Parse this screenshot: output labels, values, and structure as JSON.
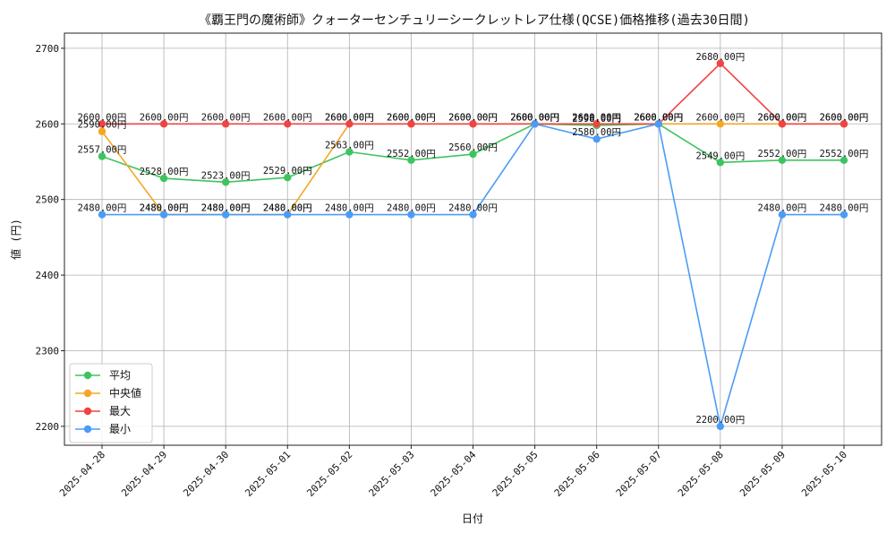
{
  "chart_data": {
    "type": "line",
    "title": "《覇王門の魔術師》クォーターセンチュリーシークレットレア仕様(QCSE)価格推移(過去30日間)",
    "xlabel": "日付",
    "ylabel": "値 (円)",
    "ylim": [
      2175,
      2720
    ],
    "yticks": [
      2200,
      2300,
      2400,
      2500,
      2600,
      2700
    ],
    "grid": true,
    "legend_position": "bottom-left",
    "categories": [
      "2025-04-28",
      "2025-04-29",
      "2025-04-30",
      "2025-05-01",
      "2025-05-02",
      "2025-05-03",
      "2025-05-04",
      "2025-05-05",
      "2025-05-06",
      "2025-05-07",
      "2025-05-08",
      "2025-05-09",
      "2025-05-10"
    ],
    "series": [
      {
        "name": "平均",
        "color": "#3dc45f",
        "values": [
          2557,
          2528,
          2523,
          2529,
          2563,
          2552,
          2560,
          2600,
          2598,
          2600,
          2549,
          2552,
          2552
        ]
      },
      {
        "name": "中央値",
        "color": "#f5a623",
        "values": [
          2590,
          2480,
          2480,
          2480,
          2600,
          2600,
          2600,
          2600,
          2600,
          2600,
          2600,
          2600,
          2600
        ]
      },
      {
        "name": "最大",
        "color": "#ef4444",
        "values": [
          2600,
          2600,
          2600,
          2600,
          2600,
          2600,
          2600,
          2600,
          2600,
          2600,
          2680,
          2600,
          2600
        ]
      },
      {
        "name": "最小",
        "color": "#4b9cf5",
        "values": [
          2480,
          2480,
          2480,
          2480,
          2480,
          2480,
          2480,
          2600,
          2580,
          2600,
          2200,
          2480,
          2480
        ]
      }
    ],
    "value_suffix": "円"
  }
}
